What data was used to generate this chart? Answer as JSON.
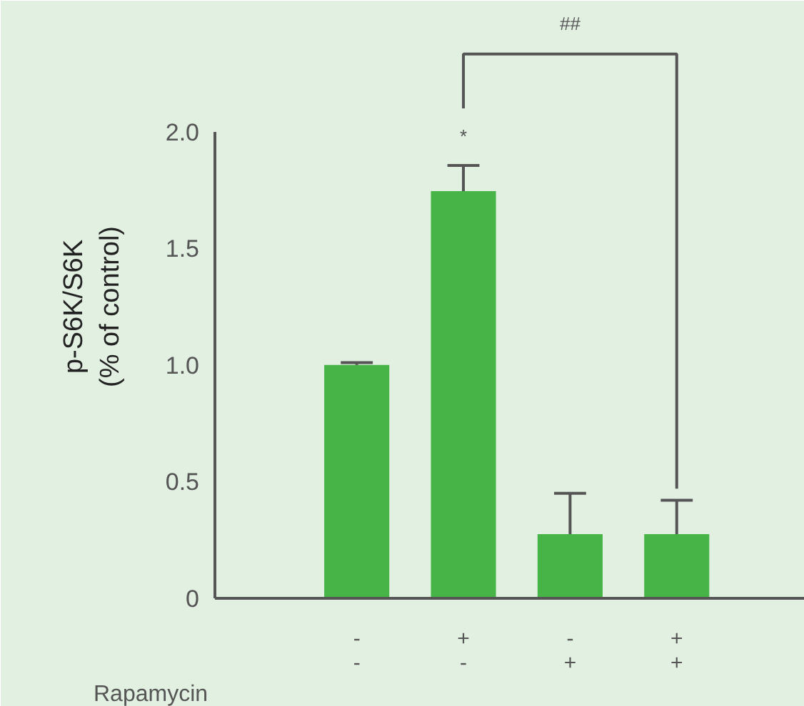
{
  "chart_data": {
    "type": "bar",
    "ylabel": "p-S6K/S6K\n(% of control)",
    "categories": [
      "-\n-",
      "+\n-",
      "-\n+",
      "+\n+"
    ],
    "values": [
      1.0,
      1.745,
      0.275,
      0.275
    ],
    "errors": [
      0.01,
      0.11,
      0.175,
      0.145
    ],
    "color": "#46b446",
    "ylim": [
      0,
      2.5
    ],
    "yticks": [
      0,
      0.5,
      {
        "value": 1,
        "label": "1.0"
      },
      1.5,
      {
        "value": 2,
        "label": "2.0"
      }
    ],
    "annotations": [
      "*",
      "##",
      "Rapamycin"
    ]
  }
}
